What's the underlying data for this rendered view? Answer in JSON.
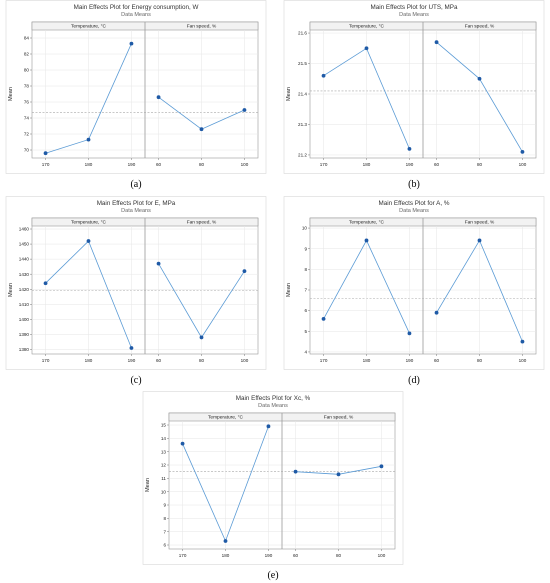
{
  "chart_data": [
    {
      "type": "line",
      "title": "Main Effects Plot for Energy consumption, W",
      "subtitle": "Data Means",
      "ylabel": "Mean",
      "caption": "(a)",
      "ylim": [
        69,
        85
      ],
      "yticks": [
        70,
        72,
        74,
        76,
        78,
        80,
        82,
        84
      ],
      "mean_line": 74.7,
      "grid": true,
      "series": [
        {
          "name": "Temperature, °C",
          "x": [
            "170",
            "180",
            "190"
          ],
          "values": [
            69.6,
            71.3,
            83.3
          ]
        },
        {
          "name": "Fan speed, %",
          "x": [
            "60",
            "80",
            "100"
          ],
          "values": [
            76.6,
            72.6,
            75.0
          ]
        }
      ]
    },
    {
      "type": "line",
      "title": "Main Effects Plot for UTS, MPa",
      "subtitle": "Data Means",
      "ylabel": "Mean",
      "caption": "(b)",
      "ylim": [
        21.19,
        21.61
      ],
      "yticks": [
        21.2,
        21.3,
        21.4,
        21.5,
        21.6
      ],
      "mean_line": 21.41,
      "grid": true,
      "series": [
        {
          "name": "Temperature, °C",
          "x": [
            "170",
            "180",
            "190"
          ],
          "values": [
            21.46,
            21.55,
            21.22
          ]
        },
        {
          "name": "Fan speed, %",
          "x": [
            "60",
            "80",
            "100"
          ],
          "values": [
            21.57,
            21.45,
            21.21
          ]
        }
      ]
    },
    {
      "type": "line",
      "title": "Main Effects Plot for E, MPa",
      "subtitle": "Data Means",
      "ylabel": "Mean",
      "caption": "(c)",
      "ylim": [
        1377,
        1462
      ],
      "yticks": [
        1380,
        1390,
        1400,
        1410,
        1420,
        1430,
        1440,
        1450,
        1460
      ],
      "mean_line": 1419,
      "grid": true,
      "series": [
        {
          "name": "Temperature, °C",
          "x": [
            "170",
            "180",
            "190"
          ],
          "values": [
            1424,
            1452,
            1381
          ]
        },
        {
          "name": "Fan speed, %",
          "x": [
            "60",
            "80",
            "100"
          ],
          "values": [
            1437,
            1388,
            1432
          ]
        }
      ]
    },
    {
      "type": "line",
      "title": "Main Effects Plot for A, %",
      "subtitle": "Data Means",
      "ylabel": "Mean",
      "caption": "(d)",
      "ylim": [
        3.9,
        10.1
      ],
      "yticks": [
        4,
        5,
        6,
        7,
        8,
        9,
        10
      ],
      "mean_line": 6.6,
      "grid": true,
      "series": [
        {
          "name": "Temperature, °C",
          "x": [
            "170",
            "180",
            "190"
          ],
          "values": [
            5.6,
            9.4,
            4.9
          ]
        },
        {
          "name": "Fan speed, %",
          "x": [
            "60",
            "80",
            "100"
          ],
          "values": [
            5.9,
            9.4,
            4.5
          ]
        }
      ]
    },
    {
      "type": "line",
      "title": "Main Effects Plot for Xc, %",
      "subtitle": "Data Means",
      "ylabel": "Mean",
      "caption": "(e)",
      "ylim": [
        5.7,
        15.3
      ],
      "yticks": [
        6,
        7,
        8,
        9,
        10,
        11,
        12,
        13,
        14,
        15
      ],
      "mean_line": 11.5,
      "grid": true,
      "series": [
        {
          "name": "Temperature, °C",
          "x": [
            "170",
            "180",
            "190"
          ],
          "values": [
            13.6,
            6.3,
            14.9
          ]
        },
        {
          "name": "Fan speed, %",
          "x": [
            "60",
            "80",
            "100"
          ],
          "values": [
            11.5,
            11.3,
            11.9
          ]
        }
      ]
    }
  ]
}
